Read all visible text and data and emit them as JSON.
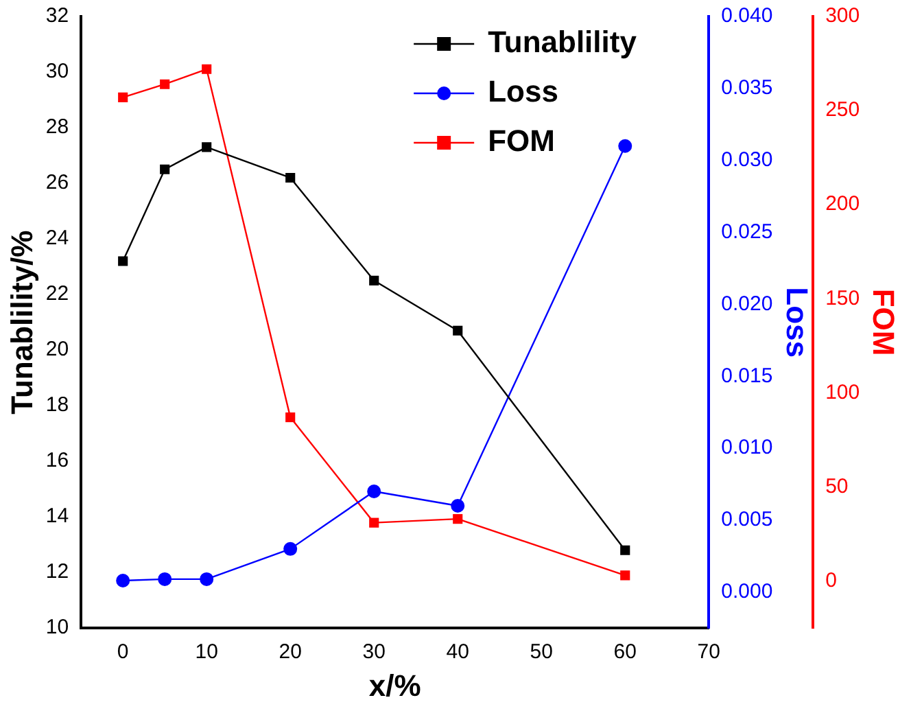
{
  "chart_data": {
    "type": "line",
    "xlabel": "x/%",
    "ylabel": "Tunablility/%",
    "y2label": "Loss",
    "y3label": "FOM",
    "x": [
      0,
      5,
      10,
      20,
      30,
      40,
      60
    ],
    "series": [
      {
        "name": "Tunablility",
        "color": "#000000",
        "marker": "square",
        "values": [
          23.2,
          26.5,
          27.3,
          26.2,
          22.5,
          20.7,
          12.8
        ]
      },
      {
        "name": "Loss",
        "color": "#0000ff",
        "marker": "circle",
        "axis": "y2",
        "values": [
          0.0008,
          0.0009,
          0.0009,
          0.003,
          0.007,
          0.006,
          0.031
        ]
      },
      {
        "name": "FOM",
        "color": "#ff0000",
        "marker": "square",
        "axis": "y3",
        "values": [
          257,
          264,
          272,
          87,
          31,
          33,
          3
        ]
      }
    ],
    "xlim": [
      -5,
      70
    ],
    "xticks": [
      0,
      10,
      20,
      30,
      40,
      50,
      60,
      70
    ],
    "ylim": [
      10,
      32
    ],
    "yticks": [
      10,
      12,
      14,
      16,
      18,
      20,
      22,
      24,
      26,
      28,
      30,
      32
    ],
    "y2lim": [
      -0.0025,
      0.04
    ],
    "y2ticks": [
      {
        "value": 0,
        "label": "0.000"
      },
      {
        "value": 0.005,
        "label": "0.005"
      },
      {
        "value": 0.01,
        "label": "0.010"
      },
      {
        "value": 0.015,
        "label": "0.015"
      },
      {
        "value": 0.02,
        "label": "0.020"
      },
      {
        "value": 0.025,
        "label": "0.025"
      },
      {
        "value": 0.03,
        "label": "0.030"
      },
      {
        "value": 0.035,
        "label": "0.035"
      },
      {
        "value": 0.04,
        "label": "0.040"
      }
    ],
    "y3lim": [
      -25,
      300
    ],
    "y3ticks": [
      0,
      50,
      100,
      150,
      200,
      250,
      300
    ],
    "grid": false,
    "legend": "top right",
    "line_style": "solid"
  }
}
